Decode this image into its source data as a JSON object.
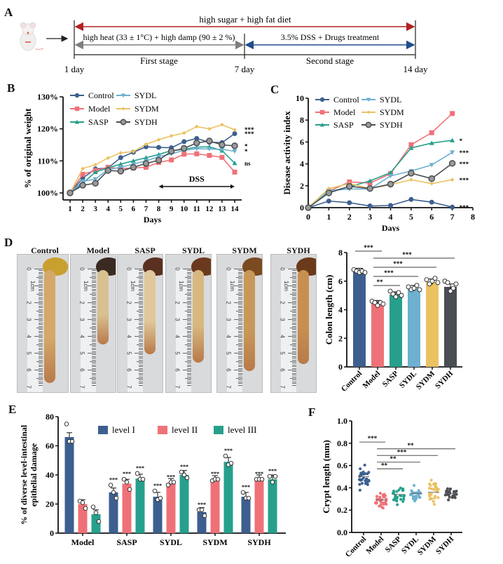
{
  "figure": {
    "panels": [
      "A",
      "B",
      "C",
      "D",
      "E",
      "F"
    ]
  },
  "panelA": {
    "label": "A",
    "diet_label": "high sugar + high fat diet",
    "stage1_condition": "high heat (33 ± 1°C) + high damp (90 ± 2 %)",
    "stage2_condition": "3.5% DSS + Drugs treatment",
    "stage1_name": "First stage",
    "stage2_name": "Second stage",
    "day_start": "1 day",
    "day_mid": "7 day",
    "day_end": "14 day",
    "icon": "mouse-icon",
    "colors": {
      "diet": "#b22222",
      "stage1": "#7f7f7f",
      "stage2": "#1f4e8c"
    }
  },
  "groups": {
    "names": [
      "Control",
      "Model",
      "SASP",
      "SYDL",
      "SYDM",
      "SYDH"
    ],
    "colors": [
      "#3d5f8f",
      "#ef7178",
      "#26a08c",
      "#6db0cf",
      "#eac262",
      "#4a4d52"
    ]
  },
  "chart_data": [
    {
      "id": "B",
      "type": "line",
      "title": "",
      "xlabel": "Days",
      "ylabel": "% of original weight",
      "x": [
        1,
        2,
        3,
        4,
        5,
        6,
        7,
        8,
        9,
        10,
        11,
        12,
        13,
        14
      ],
      "ylim": [
        100,
        130
      ],
      "yticks": [
        "100%",
        "110%",
        "120%",
        "130%"
      ],
      "ytick_values": [
        100,
        110,
        120,
        130
      ],
      "annotation": "DSS",
      "annotation_range": [
        8,
        14
      ],
      "legend": "top-left",
      "series": [
        {
          "name": "Control",
          "marker": "circle",
          "values": [
            100,
            104.6,
            107.5,
            107.8,
            111,
            112.7,
            114.4,
            114.2,
            114.1,
            116,
            117,
            115.8,
            115.7,
            118.5
          ],
          "sig": "***"
        },
        {
          "name": "Model",
          "marker": "square",
          "values": [
            100,
            105.8,
            107,
            108,
            107.6,
            107.8,
            108,
            109.5,
            110.3,
            112.1,
            112.2,
            111.7,
            111.1,
            106.5
          ],
          "sig": "ns"
        },
        {
          "name": "SASP",
          "marker": "triangle-up",
          "values": [
            100,
            103,
            106.5,
            107.8,
            109,
            110,
            111,
            112,
            113.2,
            113.6,
            114.3,
            114.4,
            113.2,
            109.3
          ],
          "sig": "ns"
        },
        {
          "name": "SYDL",
          "marker": "triangle-down",
          "values": [
            100,
            103.6,
            104.3,
            107.3,
            108,
            109,
            110,
            111.3,
            112.2,
            113.3,
            113.8,
            113.7,
            113.6,
            113
          ],
          "sig": "*"
        },
        {
          "name": "SYDM",
          "marker": "diamond",
          "values": [
            100,
            107.6,
            108.8,
            110.9,
            112.5,
            112.9,
            115.2,
            116.6,
            117.8,
            118.7,
            120.7,
            120,
            121.3,
            119.7
          ],
          "sig": "***"
        },
        {
          "name": "SYDH",
          "marker": "circle-open",
          "values": [
            100,
            102.4,
            103,
            107,
            106.8,
            108,
            109.2,
            110.2,
            113,
            113.9,
            115.6,
            116.2,
            115,
            114.7
          ],
          "sig": "*"
        }
      ],
      "sig_labels": [
        "***",
        "***",
        "*",
        "*",
        "ns"
      ]
    },
    {
      "id": "C",
      "type": "line",
      "title": "",
      "xlabel": "Days",
      "ylabel": "Disease activity index",
      "x": [
        0,
        1,
        2,
        3,
        4,
        5,
        6,
        7
      ],
      "xlim": [
        0,
        8
      ],
      "ylim": [
        0,
        10
      ],
      "xticks": [
        "0",
        "1",
        "2",
        "3",
        "4",
        "5",
        "6",
        "7",
        "8"
      ],
      "yticks": [
        "0",
        "2",
        "4",
        "6",
        "8",
        "10"
      ],
      "legend": "top-left",
      "series": [
        {
          "name": "Control",
          "marker": "circle",
          "values": [
            0,
            0.6,
            0.45,
            0.15,
            0.2,
            0.75,
            0.5,
            0.05
          ],
          "sig": "***"
        },
        {
          "name": "Model",
          "marker": "square",
          "values": [
            0,
            1.5,
            2.35,
            2.25,
            3.1,
            5.75,
            6.85,
            8.6
          ],
          "sig": ""
        },
        {
          "name": "SASP",
          "marker": "triangle-up",
          "values": [
            0,
            1.45,
            1.9,
            2.45,
            3.2,
            5.45,
            5.9,
            6.15
          ],
          "sig": "*"
        },
        {
          "name": "SYDL",
          "marker": "triangle-down",
          "values": [
            0,
            1.55,
            1.7,
            1.7,
            2.9,
            3.35,
            3.9,
            5.05
          ],
          "sig": "***"
        },
        {
          "name": "SYDM",
          "marker": "diamond",
          "values": [
            0,
            1.75,
            2.2,
            1.75,
            2.1,
            2.55,
            2.2,
            2.55
          ],
          "sig": "***"
        },
        {
          "name": "SYDH",
          "marker": "circle-open",
          "values": [
            0,
            1.35,
            1.95,
            1.75,
            2.15,
            3.15,
            2.65,
            4.05
          ],
          "sig": "***"
        }
      ]
    },
    {
      "id": "D-bar",
      "type": "bar",
      "title": "",
      "xlabel": "",
      "ylabel": "Colon length (cm)",
      "categories": [
        "Control",
        "Model",
        "SASP",
        "SYDL",
        "SYDM",
        "SYDH"
      ],
      "values": [
        6.7,
        4.45,
        5.05,
        5.5,
        5.95,
        5.6
      ],
      "points": [
        [
          6.8,
          6.7,
          6.6,
          6.7,
          6.6
        ],
        [
          4.6,
          4.5,
          4.3,
          4.5,
          4.4
        ],
        [
          5.3,
          5.1,
          4.9,
          5.2,
          5.0
        ],
        [
          5.6,
          5.4,
          5.5,
          5.7,
          5.4
        ],
        [
          6.1,
          5.8,
          6.0,
          6.2,
          5.9
        ],
        [
          6.0,
          5.9,
          5.3,
          5.5,
          5.8
        ]
      ],
      "ylim": [
        0,
        8
      ],
      "yticks": [
        "0",
        "2",
        "4",
        "6",
        "8"
      ],
      "comparisons": [
        {
          "from": "Control",
          "to": "Model",
          "label": "***"
        },
        {
          "from": "Model",
          "to": "SYDH",
          "label": "***"
        },
        {
          "from": "Model",
          "to": "SYDM",
          "label": "***"
        },
        {
          "from": "Model",
          "to": "SYDL",
          "label": "***"
        },
        {
          "from": "Model",
          "to": "SASP",
          "label": "**"
        }
      ]
    },
    {
      "id": "E",
      "type": "bar",
      "title": "",
      "xlabel": "",
      "ylabel": "% of diverse level-intestinal epithelial damage",
      "categories": [
        "Model",
        "SASP",
        "SYDL",
        "SYDM",
        "SYDH"
      ],
      "ylim": [
        0,
        80
      ],
      "yticks": [
        "0",
        "20",
        "40",
        "60",
        "80"
      ],
      "legend": "top",
      "series": [
        {
          "name": "level I",
          "values": [
            66,
            28,
            25,
            14.5,
            25
          ],
          "sig": [
            "",
            "***",
            "***",
            "***",
            "***"
          ],
          "points": [
            [
              75,
              63,
              63
            ],
            [
              33,
              28,
              24
            ],
            [
              29,
              23,
              24
            ],
            [
              16,
              16,
              12
            ],
            [
              28,
              24,
              24
            ]
          ]
        },
        {
          "name": "level II",
          "values": [
            20,
            34,
            34.5,
            36.5,
            37
          ],
          "sig": [
            "",
            "***",
            "***",
            "***",
            "***"
          ],
          "points": [
            [
              22,
              21,
              17
            ],
            [
              37,
              35,
              30
            ],
            [
              33,
              35,
              35
            ],
            [
              36,
              37,
              37
            ],
            [
              37,
              37,
              37
            ]
          ]
        },
        {
          "name": "level III",
          "values": [
            13,
            37.5,
            40,
            49,
            37
          ],
          "sig": [
            "",
            "***",
            "***",
            "***",
            "***"
          ],
          "points": [
            [
              18,
              14,
              8
            ],
            [
              41,
              37,
              37
            ],
            [
              42,
              40,
              38
            ],
            [
              53,
              47,
              48
            ],
            [
              39,
              35,
              39
            ]
          ]
        }
      ]
    },
    {
      "id": "F",
      "type": "scatter",
      "title": "",
      "xlabel": "",
      "ylabel": "Crypt length (mm)",
      "categories": [
        "Control",
        "Model",
        "SASP",
        "SYDL",
        "SYDM",
        "SYDH"
      ],
      "means": [
        0.5,
        0.29,
        0.34,
        0.35,
        0.36,
        0.35
      ],
      "ranges": [
        [
          0.35,
          0.65
        ],
        [
          0.19,
          0.4
        ],
        [
          0.22,
          0.45
        ],
        [
          0.26,
          0.44
        ],
        [
          0.22,
          0.51
        ],
        [
          0.26,
          0.44
        ]
      ],
      "ylim": [
        0,
        1.0
      ],
      "yticks": [
        "0.0",
        "0.2",
        "0.4",
        "0.6",
        "0.8",
        "1.0"
      ],
      "comparisons": [
        {
          "from": "Control",
          "to": "Model",
          "label": "***"
        },
        {
          "from": "Model",
          "to": "SYDH",
          "label": "**"
        },
        {
          "from": "Model",
          "to": "SYDM",
          "label": "***"
        },
        {
          "from": "Model",
          "to": "SYDL",
          "label": "**"
        },
        {
          "from": "Model",
          "to": "SASP",
          "label": "**"
        }
      ]
    }
  ],
  "panelD": {
    "label": "D",
    "photo_titles": [
      "Control",
      "Model",
      "SASP",
      "SYDL",
      "SYDM",
      "SYDH"
    ],
    "ruler_numbers": [
      "0",
      "1cm",
      "2",
      "3",
      "4",
      "5",
      "6",
      "7"
    ],
    "colon_lengths_cm": [
      6.7,
      4.4,
      5.0,
      5.5,
      6.0,
      5.6
    ]
  },
  "labels": {
    "B": "B",
    "C": "C",
    "E": "E",
    "F": "F"
  }
}
